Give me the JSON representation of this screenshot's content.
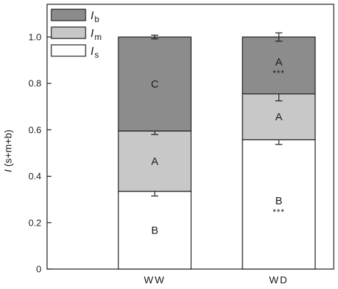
{
  "chart_data": {
    "type": "bar",
    "stacked": true,
    "categories": [
      "WW",
      "WD"
    ],
    "ylabel": {
      "italic": "I",
      "rest": " (s+m+b)"
    },
    "ylim": [
      0,
      1.0
    ],
    "yticks": [
      {
        "value": 0,
        "label": "0"
      },
      {
        "value": 0.2,
        "label": "0.2"
      },
      {
        "value": 0.4,
        "label": "0.4"
      },
      {
        "value": 0.6,
        "label": "0.6"
      },
      {
        "value": 0.8,
        "label": "0.8"
      },
      {
        "value": 1.0,
        "label": "1.0"
      }
    ],
    "grid": false,
    "legend_position": "top-left",
    "series": [
      {
        "name": "Is",
        "legend": {
          "main": "I",
          "sub": "s"
        },
        "color": "#ffffff",
        "values": [
          0.335,
          0.557
        ],
        "errors": [
          0.02,
          0.02
        ],
        "letters": [
          "B",
          "B"
        ],
        "stars": [
          "",
          "***"
        ]
      },
      {
        "name": "Im",
        "legend": {
          "main": "I",
          "sub": "m"
        },
        "color": "#c8c8c8",
        "values": [
          0.26,
          0.198
        ],
        "errors": [
          0.015,
          0.03
        ],
        "letters": [
          "A",
          "A"
        ],
        "stars": [
          "",
          ""
        ]
      },
      {
        "name": "Ib",
        "legend": {
          "main": "I",
          "sub": "b"
        },
        "color": "#8c8c8c",
        "values": [
          0.405,
          0.245
        ],
        "errors": [
          0.008,
          0.018
        ],
        "letters": [
          "C",
          "A"
        ],
        "stars": [
          "",
          "***"
        ]
      }
    ]
  }
}
